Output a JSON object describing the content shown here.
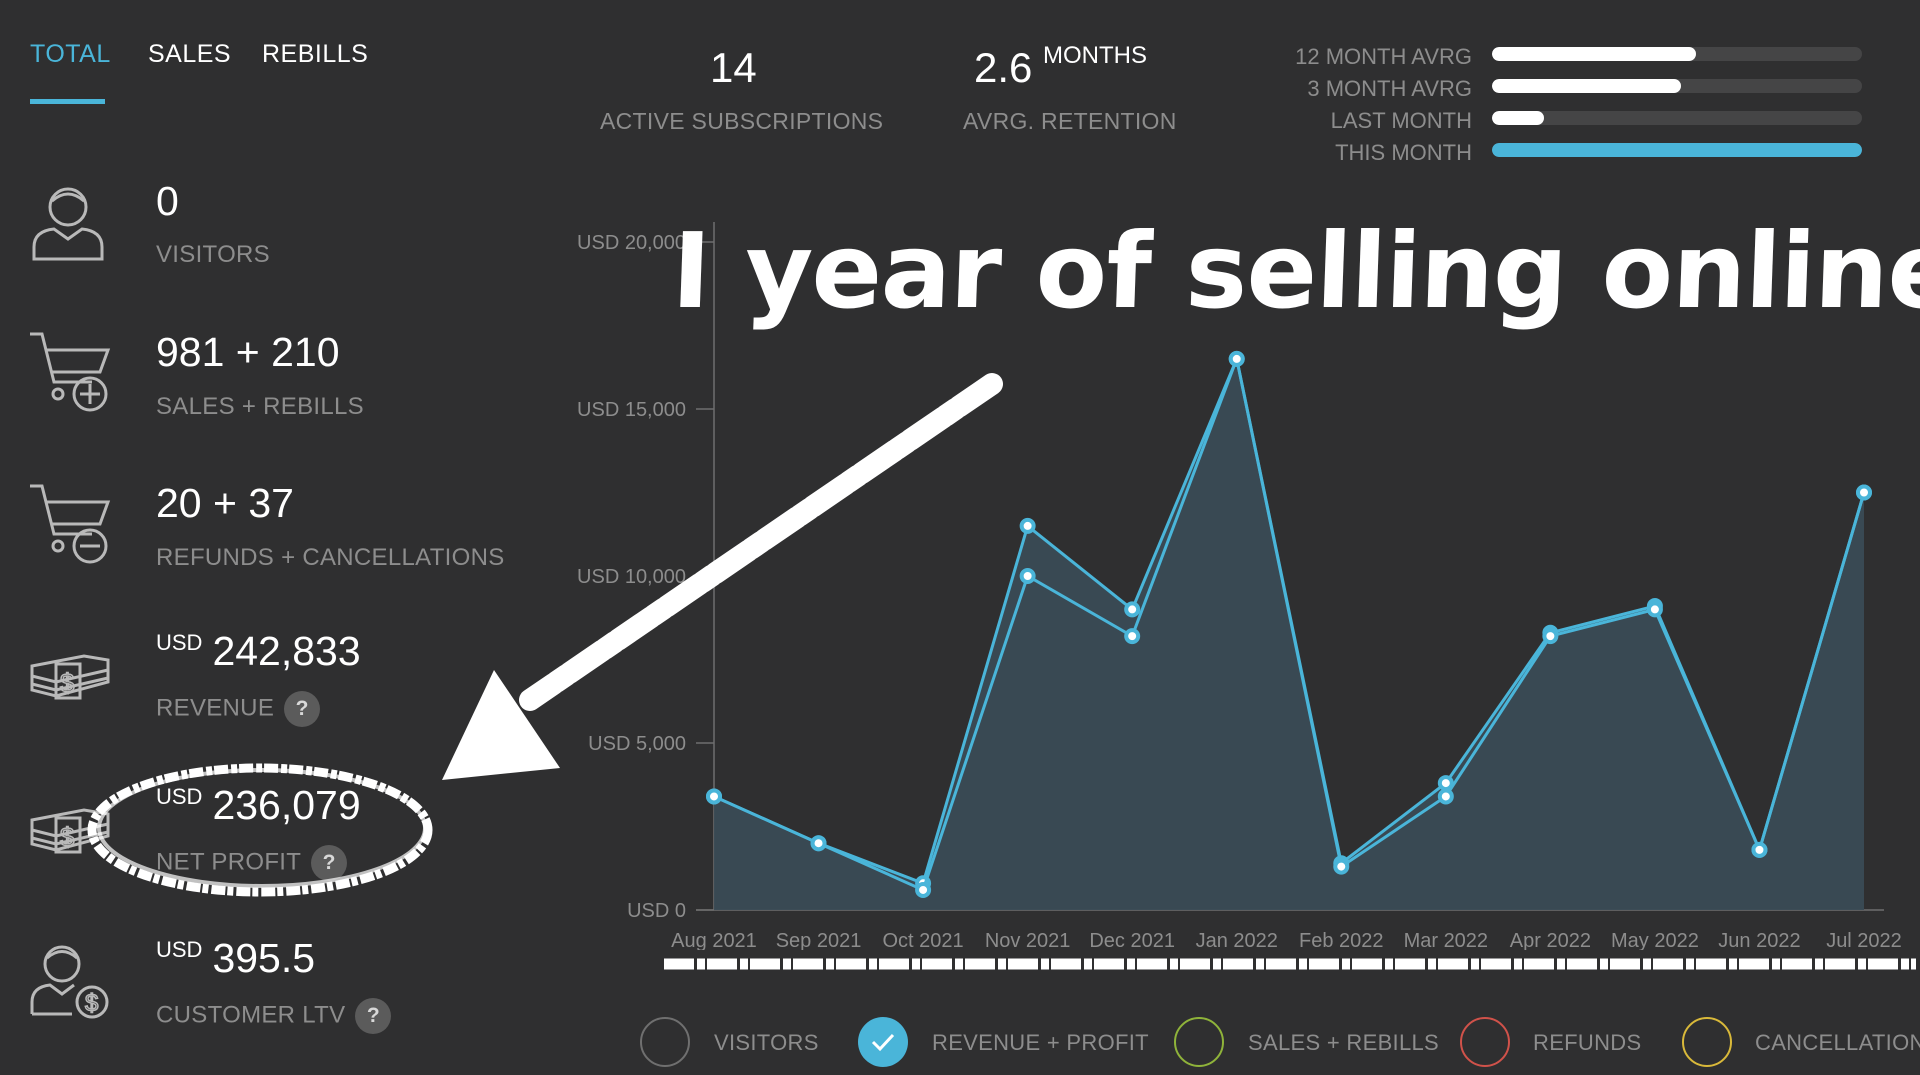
{
  "tabs": [
    {
      "label": "TOTAL",
      "active": true
    },
    {
      "label": "SALES",
      "active": false
    },
    {
      "label": "REBILLS",
      "active": false
    }
  ],
  "top_stats": {
    "active_subscriptions": {
      "value": "14",
      "label": "ACTIVE SUBSCRIPTIONS"
    },
    "retention": {
      "value": "2.6",
      "unit": "MONTHS",
      "label": "AVRG. RETENTION"
    }
  },
  "averages": [
    {
      "label": "12 MONTH AVRG",
      "fraction": 0.55
    },
    {
      "label": "3 MONTH AVRG",
      "fraction": 0.51
    },
    {
      "label": "LAST MONTH",
      "fraction": 0.14
    },
    {
      "label": "THIS MONTH",
      "fraction": 1.0
    }
  ],
  "stats": [
    {
      "value": "0",
      "label": "VISITORS",
      "icon": "user-icon"
    },
    {
      "value": "981 + 210",
      "label": "SALES + REBILLS",
      "icon": "cart-plus-icon"
    },
    {
      "value": "20 + 37",
      "label": "REFUNDS + CANCELLATIONS",
      "icon": "cart-minus-icon"
    },
    {
      "prefix": "USD",
      "value": "242,833",
      "label": "REVENUE",
      "icon": "money-stack-icon",
      "help": "?"
    },
    {
      "prefix": "USD",
      "value": "236,079",
      "label": "NET PROFIT",
      "icon": "money-stack-icon",
      "help": "?"
    },
    {
      "prefix": "USD",
      "value": "395.5",
      "label": "CUSTOMER LTV",
      "icon": "user-dollar-icon",
      "help": "?"
    }
  ],
  "headline": "I year of selling online",
  "colors": {
    "accent": "#4ab5d9",
    "background": "#2f2f30",
    "area_fill": "#3a4b55",
    "legend_sales": "#8fb33a",
    "legend_refunds": "#d0524a",
    "legend_cancellations": "#d9b93a"
  },
  "chart_data": {
    "type": "area",
    "categories": [
      "Aug 2021",
      "Sep 2021",
      "Oct 2021",
      "Nov 2021",
      "Dec 2021",
      "Jan 2022",
      "Feb 2022",
      "Mar 2022",
      "Apr 2022",
      "May 2022",
      "Jun 2022",
      "Jul 2022"
    ],
    "series": [
      {
        "name": "REVENUE",
        "values": [
          3400,
          2000,
          800,
          11500,
          9000,
          16500,
          1400,
          3800,
          8300,
          9100,
          1800,
          12500
        ]
      },
      {
        "name": "PROFIT",
        "values": [
          3400,
          2000,
          600,
          10000,
          8200,
          16500,
          1300,
          3400,
          8200,
          9000,
          1800,
          12500
        ]
      }
    ],
    "y_ticks": [
      "USD 0",
      "USD 5,000",
      "USD 10,000",
      "USD 15,000",
      "USD 20,000"
    ],
    "ylim": [
      0,
      20000
    ],
    "grid": false
  },
  "legend": [
    {
      "label": "VISITORS",
      "checked": false,
      "color": "#6f6f6f"
    },
    {
      "label": "REVENUE + PROFIT",
      "checked": true,
      "color": "#4ab5d9"
    },
    {
      "label": "SALES + REBILLS",
      "checked": false,
      "color": "#8fb33a"
    },
    {
      "label": "REFUNDS",
      "checked": false,
      "color": "#d0524a"
    },
    {
      "label": "CANCELLATIONS",
      "checked": false,
      "color": "#d9b93a"
    }
  ]
}
